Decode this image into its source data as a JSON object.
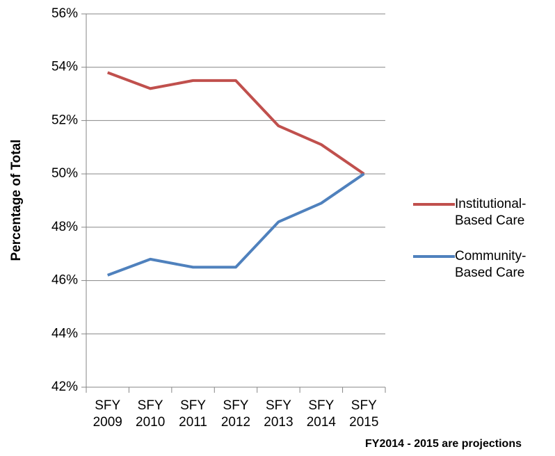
{
  "chart_data": {
    "type": "line",
    "y_label": "Percentage of Total",
    "note": "FY2014 - 2015 are projections",
    "categories": [
      "SFY 2009",
      "SFY 2010",
      "SFY 2011",
      "SFY 2012",
      "SFY 2013",
      "SFY 2014",
      "SFY 2015"
    ],
    "series": [
      {
        "name": "Institutional-Based Care",
        "color": "#c0504d",
        "values": [
          53.8,
          53.2,
          53.5,
          53.5,
          51.8,
          51.1,
          50.0
        ]
      },
      {
        "name": "Community-Based Care",
        "color": "#4f81bd",
        "values": [
          46.2,
          46.8,
          46.5,
          46.5,
          48.2,
          48.9,
          50.0
        ]
      }
    ],
    "ylim": [
      42,
      56
    ],
    "yticks": [
      {
        "value": 42,
        "label": "42%"
      },
      {
        "value": 44,
        "label": "44%"
      },
      {
        "value": 46,
        "label": "46%"
      },
      {
        "value": 48,
        "label": "48%"
      },
      {
        "value": 50,
        "label": "50%"
      },
      {
        "value": 52,
        "label": "52%"
      },
      {
        "value": 54,
        "label": "54%"
      },
      {
        "value": 56,
        "label": "56%"
      }
    ],
    "grid": true,
    "legend": "right"
  }
}
